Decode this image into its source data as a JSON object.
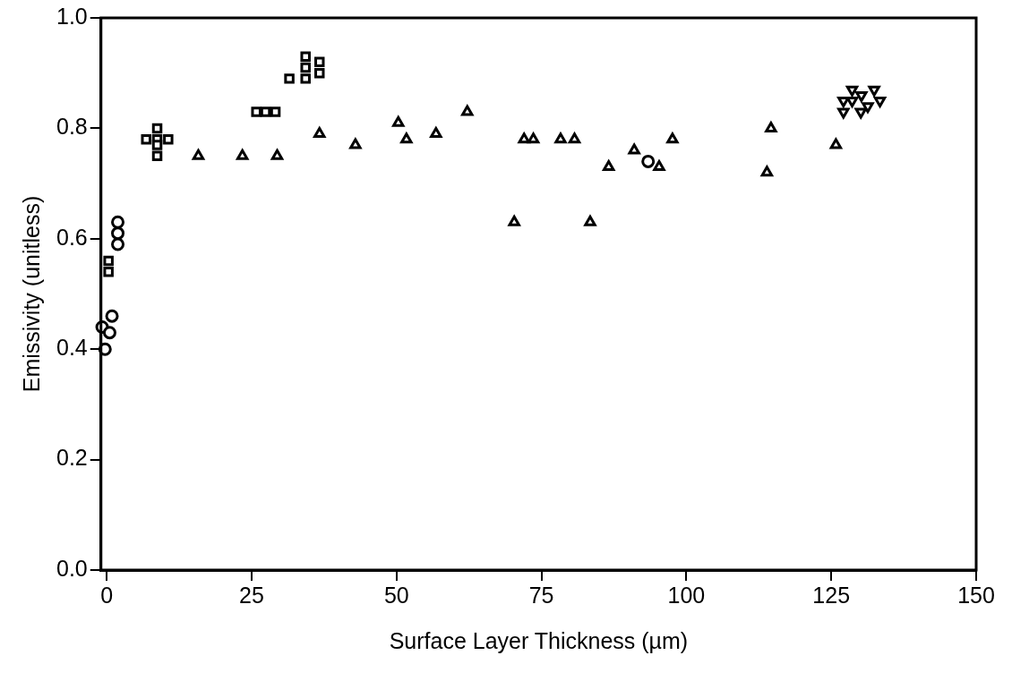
{
  "chart_data": {
    "type": "scatter",
    "xlabel": "Surface Layer Thickness (µm)",
    "ylabel": "Emissivity (unitless)",
    "xlim": [
      -1,
      150
    ],
    "xticks": [
      0,
      25,
      50,
      75,
      100,
      125,
      150
    ],
    "ylim": [
      0,
      1
    ],
    "yticks": [
      {
        "value": 0,
        "label": "0.0"
      },
      0.2,
      0.4,
      0.6,
      0.8,
      {
        "value": 1,
        "label": "1.0"
      }
    ],
    "grid": false,
    "legend": false,
    "series": [
      {
        "color": "#000000",
        "marker": "circle",
        "x": [
          1.9,
          1.9,
          1.9,
          0.9,
          -0.8,
          0.5,
          -0.3,
          93.4
        ],
        "values": [
          0.63,
          0.61,
          0.59,
          0.46,
          0.44,
          0.43,
          0.4,
          0.74
        ]
      },
      {
        "color": "#000000",
        "marker": "square",
        "x": [
          0.3,
          0.3,
          8.7,
          8.7,
          8.7,
          8.7,
          6.8,
          10.6,
          25.8,
          27.4,
          29.1
        ],
        "values": [
          0.56,
          0.54,
          0.8,
          0.78,
          0.77,
          0.75,
          0.78,
          0.78,
          0.83,
          0.83,
          0.83
        ]
      },
      {
        "color": "#000000",
        "marker": "square",
        "x": [
          31.5,
          34.3,
          34.3,
          34.3,
          36.7,
          36.7
        ],
        "values": [
          0.89,
          0.93,
          0.91,
          0.89,
          0.92,
          0.9
        ]
      },
      {
        "color": "#000000",
        "marker": "triangle",
        "x": [
          15.8,
          23.4,
          29.4,
          36.7,
          42.9,
          50.3,
          51.7,
          56.8,
          62.2,
          70.3,
          72.0,
          73.6,
          78.3,
          80.7,
          83.4,
          86.6,
          91.0,
          95.3,
          97.6,
          113.9,
          114.6,
          125.8
        ],
        "values": [
          0.75,
          0.75,
          0.75,
          0.79,
          0.77,
          0.81,
          0.78,
          0.79,
          0.83,
          0.63,
          0.78,
          0.78,
          0.78,
          0.78,
          0.63,
          0.73,
          0.76,
          0.73,
          0.78,
          0.72,
          0.8,
          0.77
        ]
      },
      {
        "color": "#000000",
        "marker": "triangle-down",
        "x": [
          128.6,
          132.4,
          127.1,
          130.2,
          133.4,
          127.1,
          130.1,
          131.3,
          128.6
        ],
        "values": [
          0.87,
          0.87,
          0.85,
          0.86,
          0.85,
          0.83,
          0.83,
          0.84,
          0.85
        ]
      }
    ]
  }
}
